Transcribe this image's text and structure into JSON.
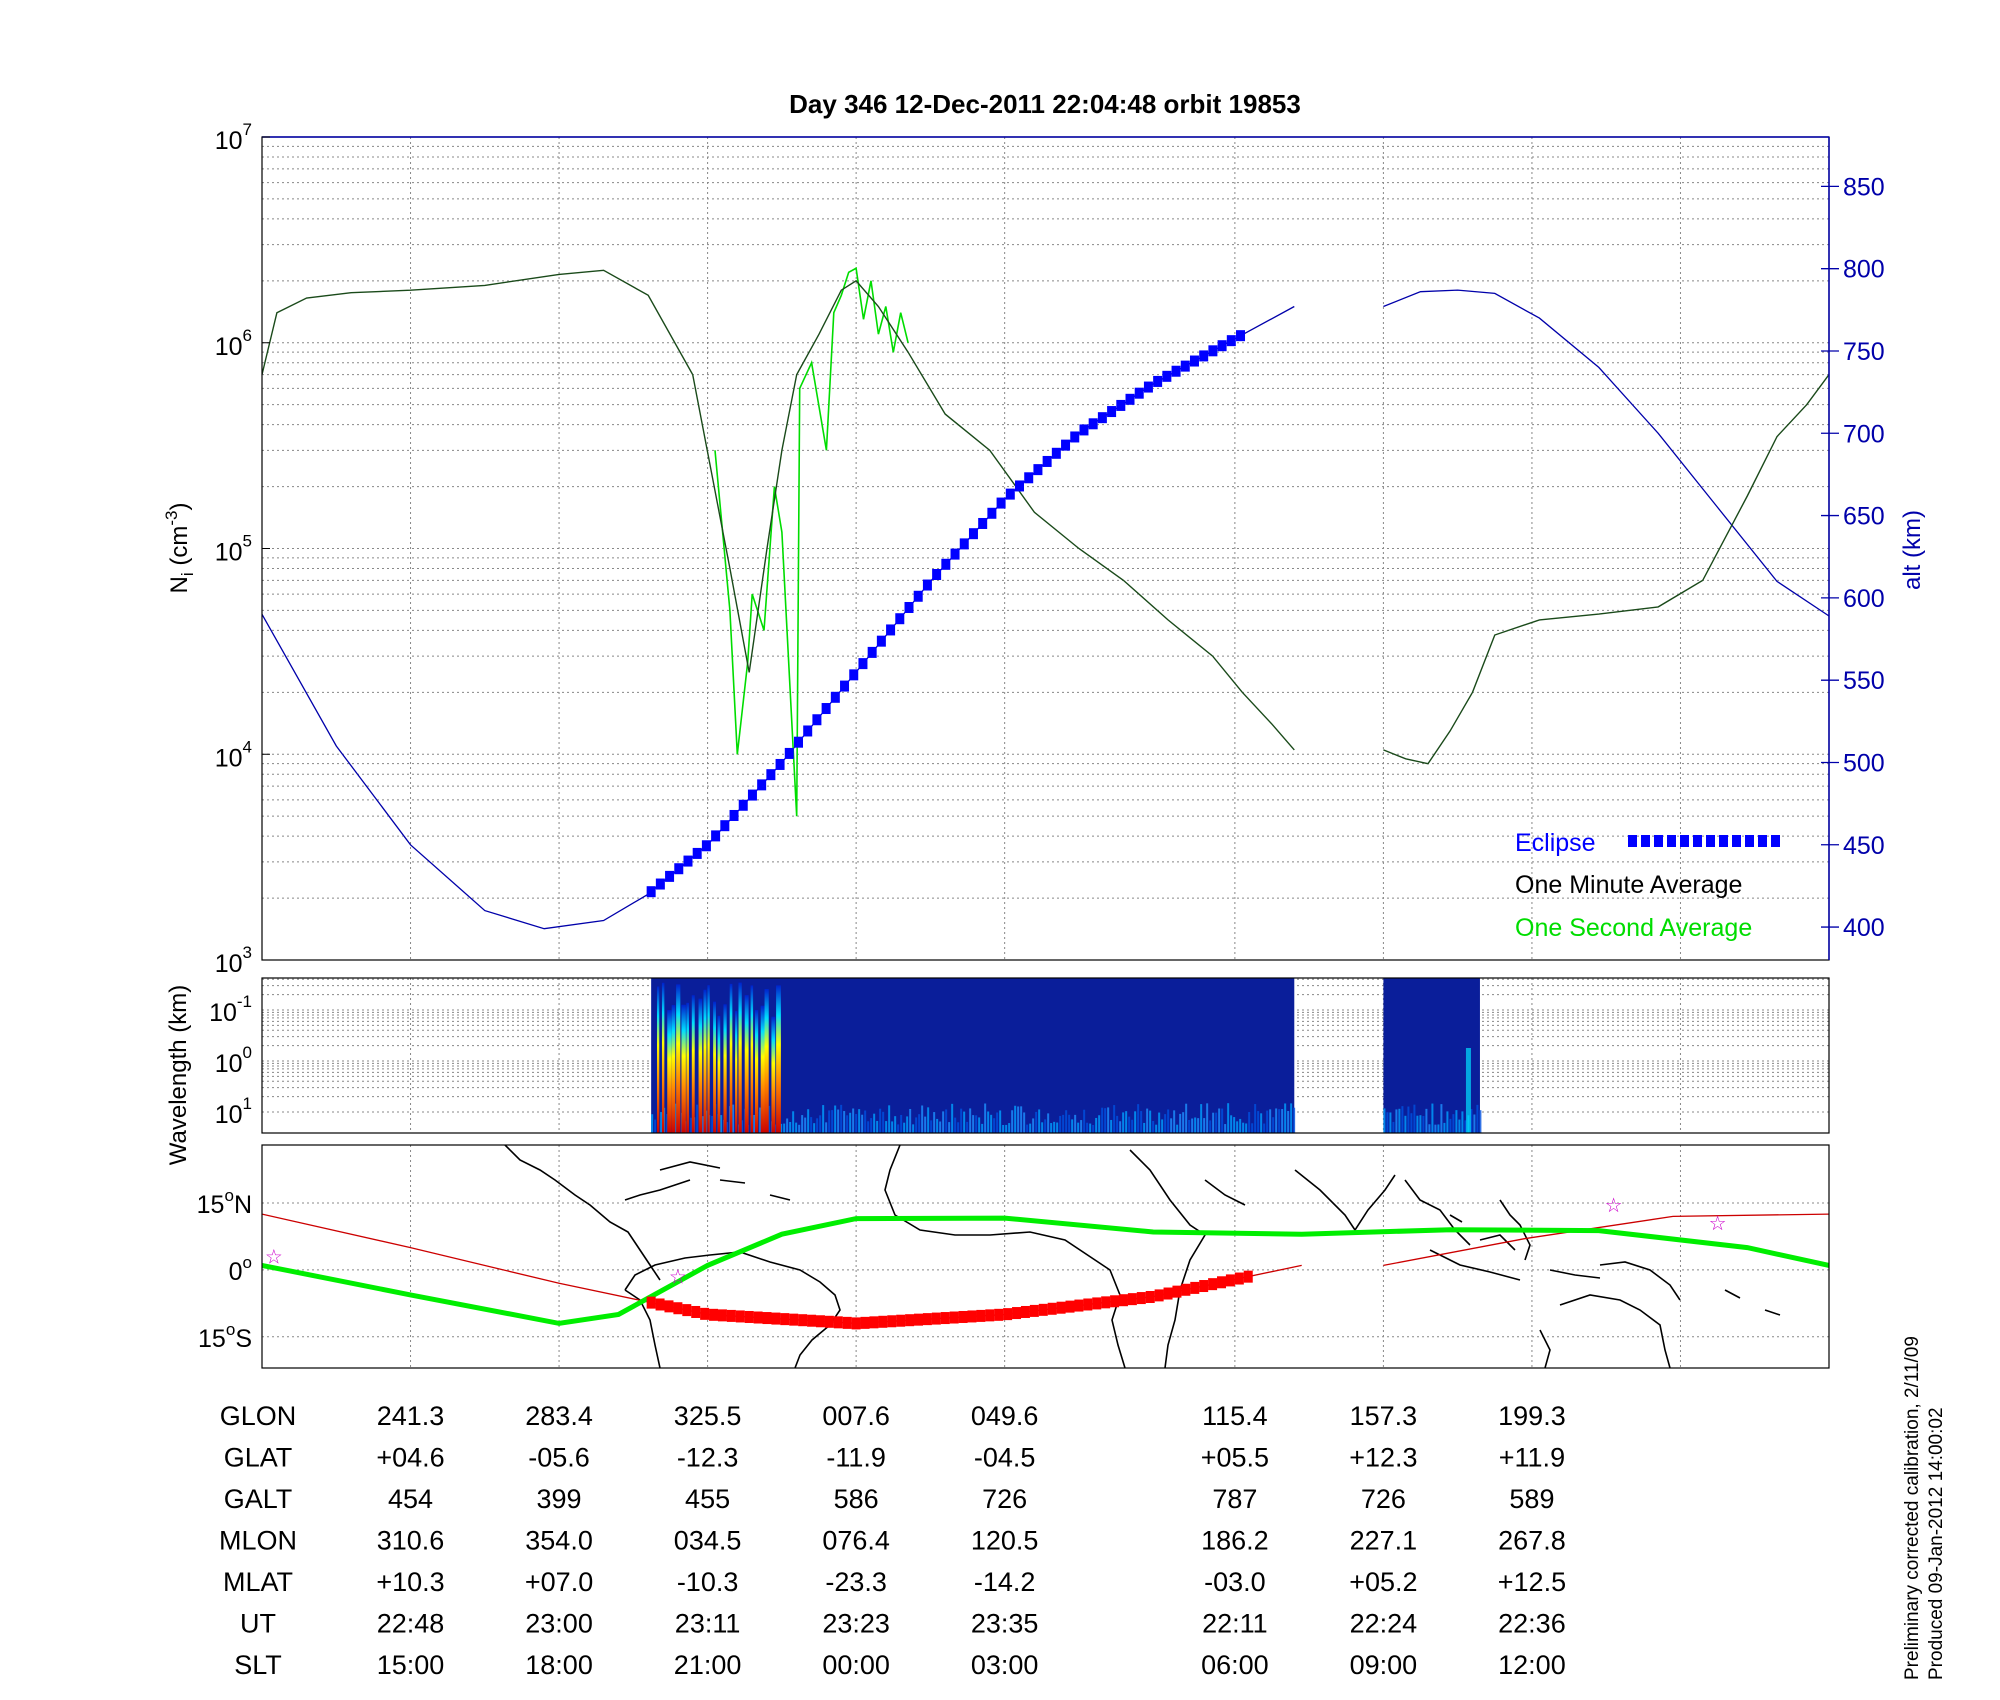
{
  "title": "Day 346  12-Dec-2011 22:04:48   orbit 19853",
  "colors": {
    "one_minute": "#000000",
    "one_second": "#00dd00",
    "altitude": "#0000aa",
    "eclipse": "#0000ff",
    "ground_track": "#00ee00",
    "magnetic_equator": "#cc0000",
    "eclipse_track": "#ff0000",
    "stars": "#cc00cc"
  },
  "chart_data": [
    {
      "id": "density",
      "type": "line",
      "ylabel": "N",
      "ylabel_sub": "i",
      "ylabel_unit": "(cm",
      "ylabel_sup": "-3",
      "ylabel_close": ")",
      "y_scale": "log",
      "ylim": [
        1000,
        10000000
      ],
      "y_ticks": [
        {
          "base": "10",
          "exp": "3"
        },
        {
          "base": "10",
          "exp": "4"
        },
        {
          "base": "10",
          "exp": "5"
        },
        {
          "base": "10",
          "exp": "6"
        },
        {
          "base": "10",
          "exp": "7"
        }
      ],
      "y2label": "alt (km)",
      "y2lim": [
        380,
        880
      ],
      "y2_ticks": [
        "400",
        "450",
        "500",
        "550",
        "600",
        "650",
        "700",
        "750",
        "800",
        "850"
      ],
      "grid": true,
      "legend_position": "bottom-right",
      "legend": [
        {
          "label": "Eclipse",
          "color": "#0000ff"
        },
        {
          "label": "One Minute Average",
          "color": "#000000"
        },
        {
          "label": "One Second Average",
          "color": "#00dd00"
        }
      ],
      "one_minute_average": [
        [
          0.0,
          700000
        ],
        [
          0.1,
          1400000
        ],
        [
          0.3,
          1650000
        ],
        [
          0.6,
          1750000
        ],
        [
          1.0,
          1800000
        ],
        [
          1.5,
          1900000
        ],
        [
          2.0,
          2150000
        ],
        [
          2.3,
          2250000
        ],
        [
          2.6,
          1700000
        ],
        [
          2.9,
          700000
        ],
        [
          3.15,
          80000
        ],
        [
          3.28,
          25000
        ],
        [
          3.4,
          100000
        ],
        [
          3.5,
          300000
        ],
        [
          3.6,
          700000
        ],
        [
          3.75,
          1100000
        ],
        [
          3.9,
          1800000
        ],
        [
          4.0,
          2000000
        ],
        [
          4.15,
          1500000
        ],
        [
          4.35,
          900000
        ],
        [
          4.6,
          450000
        ],
        [
          4.9,
          300000
        ],
        [
          5.2,
          150000
        ],
        [
          5.5,
          100000
        ],
        [
          5.8,
          70000
        ],
        [
          6.1,
          45000
        ],
        [
          6.4,
          30000
        ],
        [
          6.6,
          20000
        ],
        [
          6.8,
          14000
        ],
        [
          6.95,
          10500
        ],
        [
          null,
          null
        ],
        [
          7.55,
          10500
        ],
        [
          7.7,
          9500
        ],
        [
          7.85,
          9000
        ],
        [
          8.0,
          13000
        ],
        [
          8.15,
          20000
        ],
        [
          8.3,
          38000
        ],
        [
          8.6,
          45000
        ],
        [
          9.0,
          48000
        ],
        [
          9.4,
          52000
        ],
        [
          9.7,
          70000
        ],
        [
          10.0,
          180000
        ],
        [
          10.2,
          350000
        ],
        [
          10.4,
          500000
        ],
        [
          10.55,
          700000
        ]
      ],
      "one_second_average": [
        [
          3.05,
          300000
        ],
        [
          3.15,
          50000
        ],
        [
          3.2,
          10000
        ],
        [
          3.27,
          28000
        ],
        [
          3.3,
          60000
        ],
        [
          3.38,
          40000
        ],
        [
          3.45,
          200000
        ],
        [
          3.5,
          120000
        ],
        [
          3.6,
          5000
        ],
        [
          3.62,
          600000
        ],
        [
          3.7,
          800000
        ],
        [
          3.8,
          300000
        ],
        [
          3.85,
          1400000
        ],
        [
          3.9,
          1700000
        ],
        [
          3.95,
          2200000
        ],
        [
          4.0,
          2300000
        ],
        [
          4.05,
          1300000
        ],
        [
          4.1,
          2000000
        ],
        [
          4.15,
          1100000
        ],
        [
          4.2,
          1500000
        ],
        [
          4.25,
          900000
        ],
        [
          4.3,
          1400000
        ],
        [
          4.35,
          1000000
        ]
      ],
      "altitude_km": [
        [
          0.0,
          590
        ],
        [
          0.5,
          510
        ],
        [
          1.0,
          450
        ],
        [
          1.5,
          410
        ],
        [
          1.9,
          399
        ],
        [
          2.3,
          404
        ],
        [
          2.6,
          420
        ],
        [
          3.0,
          450
        ],
        [
          3.5,
          500
        ],
        [
          4.0,
          555
        ],
        [
          4.5,
          610
        ],
        [
          5.0,
          660
        ],
        [
          5.5,
          700
        ],
        [
          6.0,
          730
        ],
        [
          6.5,
          755
        ],
        [
          6.95,
          777
        ],
        [
          null,
          null
        ],
        [
          7.55,
          777
        ],
        [
          7.8,
          786
        ],
        [
          8.05,
          787
        ],
        [
          8.3,
          785
        ],
        [
          8.6,
          770
        ],
        [
          9.0,
          740
        ],
        [
          9.4,
          700
        ],
        [
          9.8,
          655
        ],
        [
          10.2,
          610
        ],
        [
          10.55,
          589
        ]
      ],
      "eclipse": {
        "start": 2.62,
        "end": 6.64
      }
    },
    {
      "id": "spectrogram",
      "type": "heatmap",
      "ylabel": "Wavelength (km)",
      "y_ticks": [
        {
          "base": "10",
          "exp": "-1"
        },
        {
          "base": "10",
          "exp": "0"
        },
        {
          "base": "10",
          "exp": "1"
        }
      ],
      "data_segments": [
        {
          "start": 2.62,
          "end": 6.95
        },
        {
          "start": 7.55,
          "end": 8.2
        }
      ]
    },
    {
      "id": "map",
      "type": "line",
      "y_ticks": [
        {
          "value": "15",
          "dir": "N"
        },
        {
          "value": "0",
          "dir": ""
        },
        {
          "value": "15",
          "dir": "S"
        }
      ],
      "ylim": [
        -22,
        28
      ],
      "ground_track": [
        [
          0.0,
          1
        ],
        [
          1.0,
          -5.6
        ],
        [
          2.0,
          -12
        ],
        [
          2.4,
          -10
        ],
        [
          3.0,
          1
        ],
        [
          3.5,
          8
        ],
        [
          4.0,
          11.5
        ],
        [
          5.0,
          11.6
        ],
        [
          6.0,
          8.5
        ],
        [
          7.0,
          8
        ],
        [
          8.0,
          9
        ],
        [
          9.0,
          8.8
        ],
        [
          10.0,
          5
        ],
        [
          10.55,
          1
        ]
      ],
      "magnetic_equator": [
        [
          0.0,
          12.5
        ],
        [
          1.0,
          5
        ],
        [
          2.0,
          -3
        ],
        [
          3.0,
          -10
        ],
        [
          4.0,
          -12
        ],
        [
          5.0,
          -10
        ],
        [
          6.0,
          -6
        ],
        [
          7.0,
          1
        ],
        [
          null,
          null
        ],
        [
          7.55,
          1
        ],
        [
          8.5,
          7
        ],
        [
          9.5,
          12
        ],
        [
          10.55,
          12.5
        ]
      ],
      "eclipse_track": {
        "start": 2.62,
        "end": 6.64
      },
      "stars": [
        [
          0.08,
          3
        ],
        [
          2.8,
          -1.5
        ],
        [
          9.1,
          14.5
        ],
        [
          9.8,
          10.5
        ]
      ]
    }
  ],
  "table": {
    "labels": [
      "GLON",
      "GLAT",
      "GALT",
      "MLON",
      "MLAT",
      "UT",
      "SLT"
    ],
    "columns": [
      {
        "x": 1,
        "values": [
          "241.3",
          "+04.6",
          "454",
          "310.6",
          "+10.3",
          "22:48",
          "15:00"
        ]
      },
      {
        "x": 2,
        "values": [
          "283.4",
          "-05.6",
          "399",
          "354.0",
          "+07.0",
          "23:00",
          "18:00"
        ]
      },
      {
        "x": 3,
        "values": [
          "325.5",
          "-12.3",
          "455",
          "034.5",
          "-10.3",
          "23:11",
          "21:00"
        ]
      },
      {
        "x": 4,
        "values": [
          "007.6",
          "-11.9",
          "586",
          "076.4",
          "-23.3",
          "23:23",
          "00:00"
        ]
      },
      {
        "x": 5,
        "values": [
          "049.6",
          "-04.5",
          "726",
          "120.5",
          "-14.2",
          "23:35",
          "03:00"
        ]
      },
      {
        "x": 6.55,
        "values": [
          "115.4",
          "+05.5",
          "787",
          "186.2",
          "-03.0",
          "22:11",
          "06:00"
        ]
      },
      {
        "x": 7.55,
        "values": [
          "157.3",
          "+12.3",
          "726",
          "227.1",
          "+05.2",
          "22:24",
          "09:00"
        ]
      },
      {
        "x": 8.55,
        "values": [
          "199.3",
          "+11.9",
          "589",
          "267.8",
          "+12.5",
          "22:36",
          "12:00"
        ]
      }
    ]
  },
  "footnote": {
    "line1": "Preliminary corrected calibration, 2/11/09",
    "line2": "Produced 09-Jan-2012 14:00:02"
  }
}
